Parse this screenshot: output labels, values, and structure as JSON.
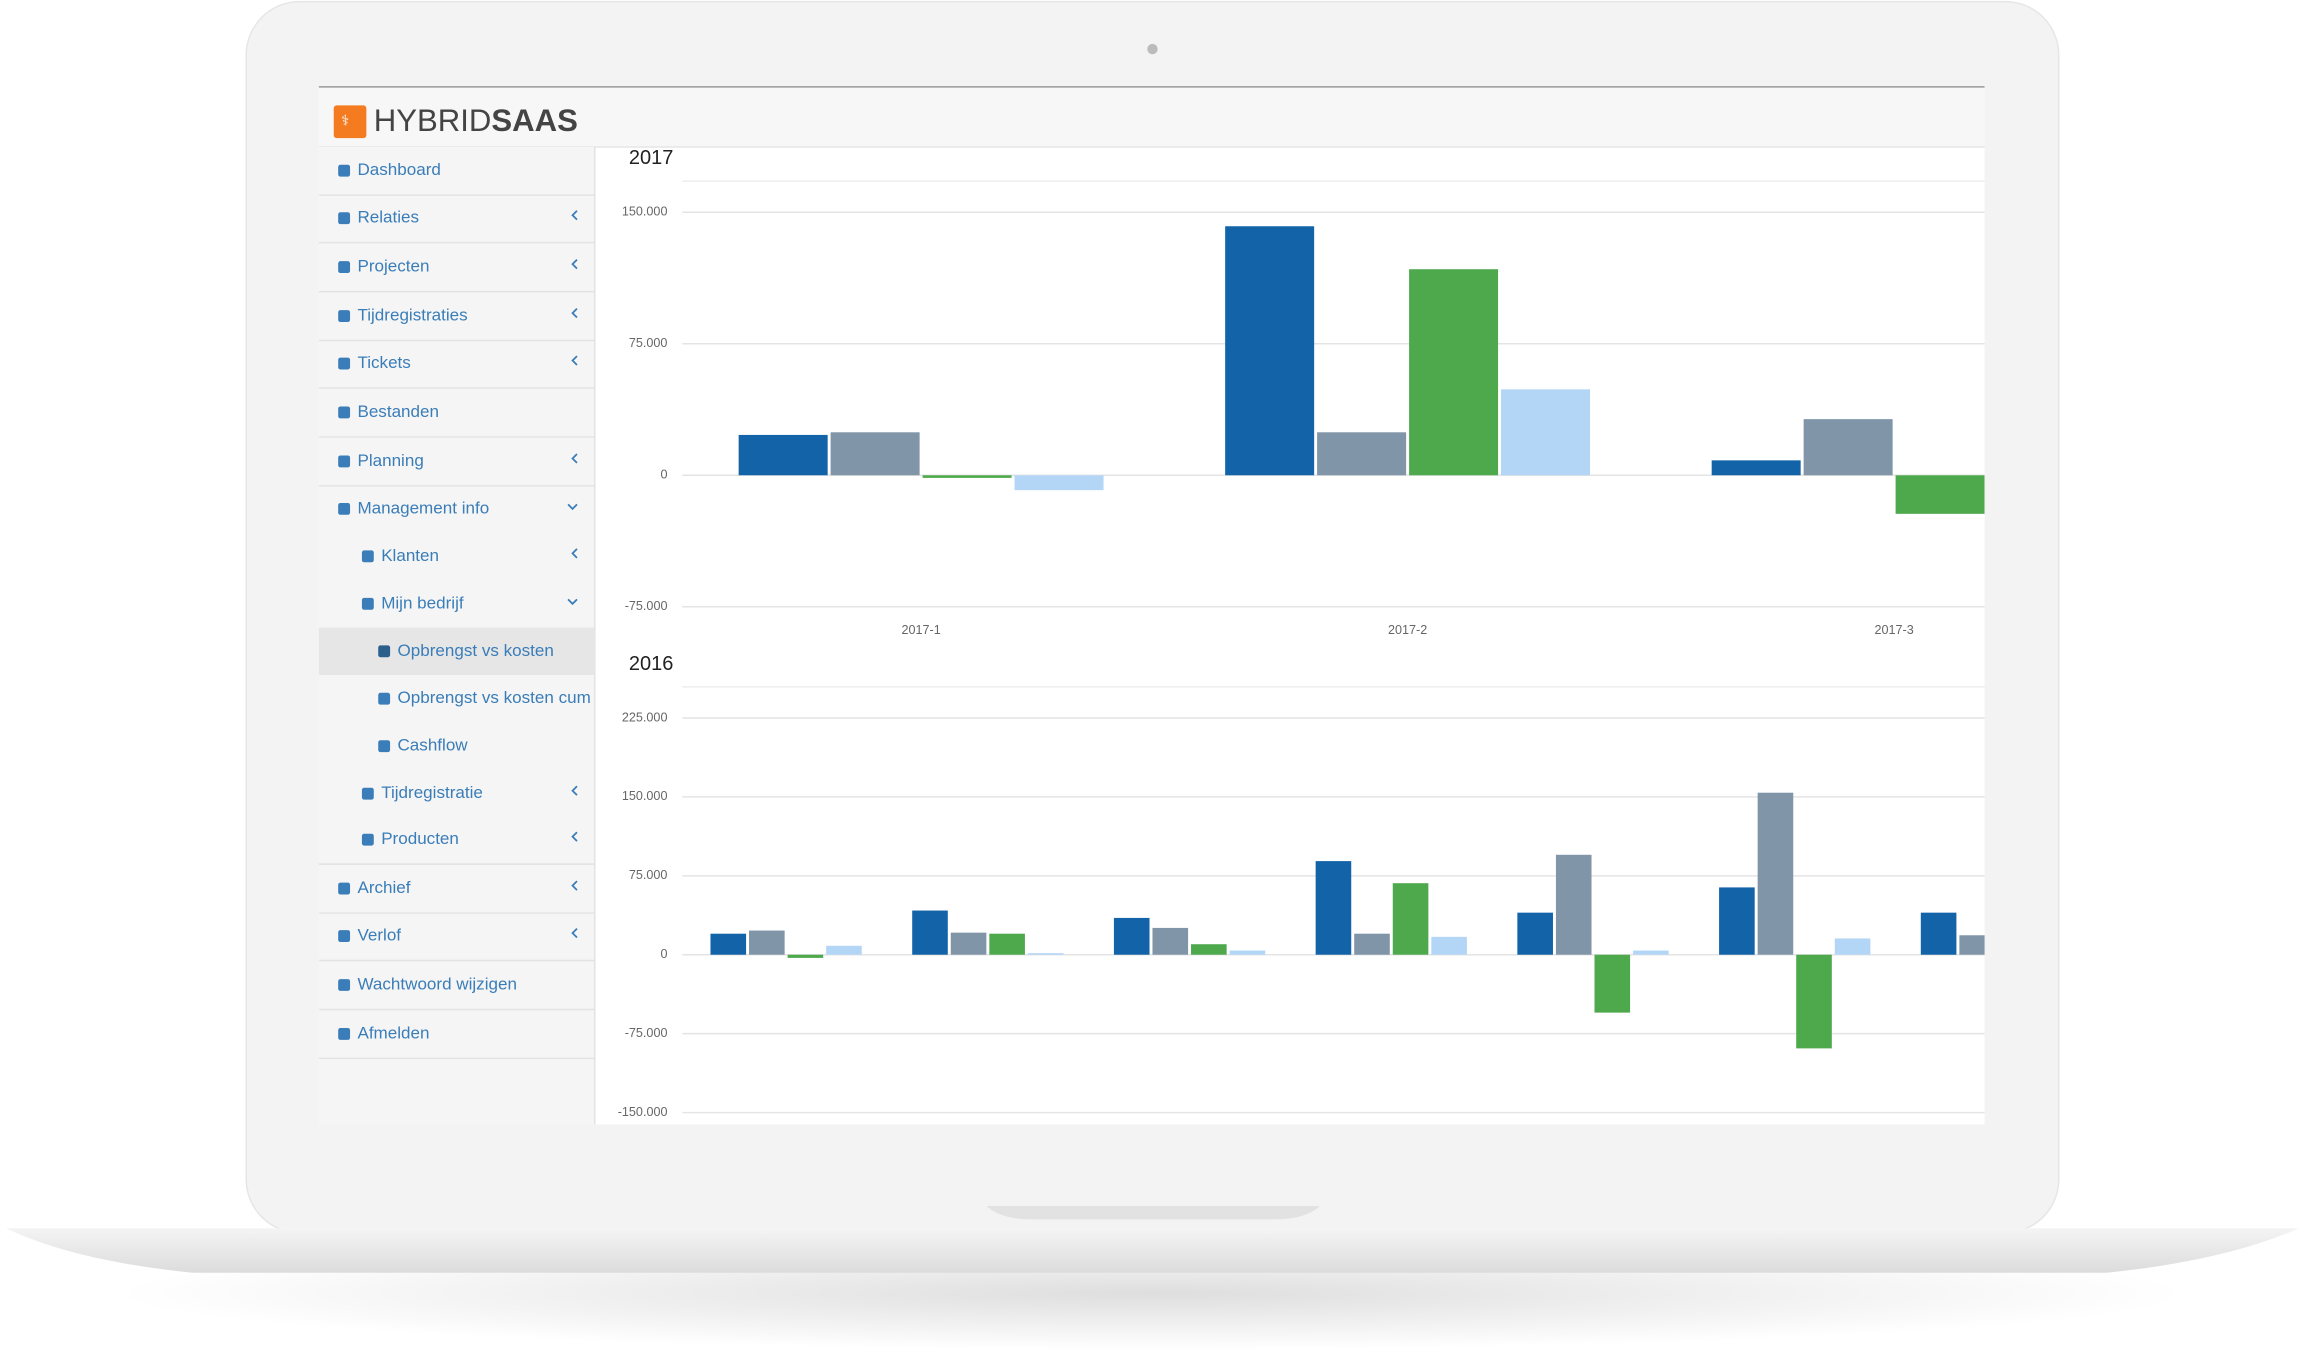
{
  "header": {
    "logo_light": "HYBRID",
    "logo_bold": "SAAS"
  },
  "sidebar": {
    "items": [
      "Dashboard",
      "Relaties",
      "Projecten",
      "Tijdregistraties",
      "Tickets",
      "Bestanden",
      "Planning",
      "Management info",
      "Klanten",
      "Mijn bedrijf",
      "Opbrengst vs kosten",
      "Opbrengst vs kosten cum",
      "Cashflow",
      "Tijdregistratie",
      "Producten",
      "Archief",
      "Verlof",
      "Wachtwoord wijzigen",
      "Afmelden"
    ]
  },
  "chart_data": [
    {
      "type": "bar",
      "title": "2017",
      "categories": [
        "2017-1",
        "2017-2",
        "2017-3"
      ],
      "series": [
        {
          "color": "#1363a8",
          "values": [
            23000,
            142000,
            8500
          ]
        },
        {
          "color": "#8095a8",
          "values": [
            24500,
            24500,
            32000
          ]
        },
        {
          "color": "#4ea94d",
          "values": [
            -1500,
            117500,
            -22000
          ]
        },
        {
          "color": "#b3d6f6",
          "values": [
            -8500,
            49000,
            null
          ]
        }
      ],
      "ylim": [
        -75000,
        150000
      ],
      "yticks": [
        {
          "value": 150000,
          "label": "150.000"
        },
        {
          "value": 75000,
          "label": "75.000"
        },
        0,
        {
          "value": -75000,
          "label": "-75.000"
        }
      ],
      "grid": true
    },
    {
      "type": "bar",
      "title": "2016",
      "categories": [
        null,
        null,
        null,
        null,
        null,
        null,
        null
      ],
      "series": [
        {
          "color": "#1363a8",
          "values": [
            20000,
            42000,
            35000,
            89000,
            40000,
            64000,
            40000
          ]
        },
        {
          "color": "#8095a8",
          "values": [
            23000,
            21000,
            25500,
            20000,
            95000,
            154000,
            18500
          ]
        },
        {
          "color": "#4ea94d",
          "values": [
            -3000,
            20000,
            10000,
            68000,
            -55000,
            -89000,
            null
          ]
        },
        {
          "color": "#b3d6f6",
          "values": [
            8500,
            1500,
            4000,
            17000,
            4000,
            15500,
            null
          ]
        }
      ],
      "ylim": [
        -150000,
        225000
      ],
      "yticks": [
        {
          "value": 225000,
          "label": "225.000"
        },
        {
          "value": 150000,
          "label": "150.000"
        },
        {
          "value": 75000,
          "label": "75.000"
        },
        0,
        {
          "value": -75000,
          "label": "-75.000"
        },
        {
          "value": -150000,
          "label": "-150.000"
        }
      ],
      "grid": true
    }
  ]
}
